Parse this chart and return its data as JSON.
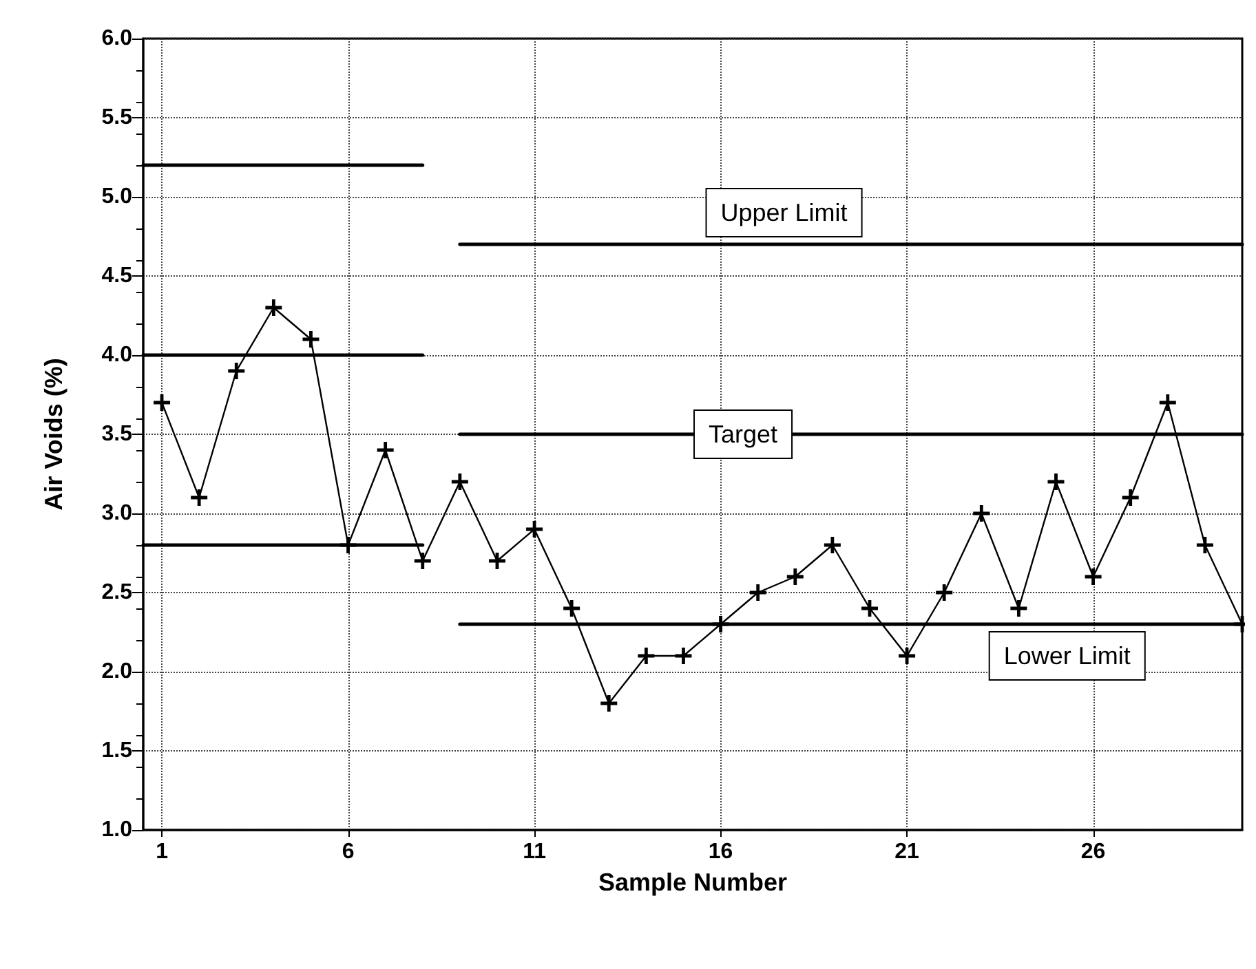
{
  "chart_data": {
    "type": "line",
    "xlabel": "Sample Number",
    "ylabel": "Air Voids (%)",
    "xlim": [
      0.5,
      30
    ],
    "xticks": [
      1,
      6,
      11,
      16,
      21,
      26
    ],
    "ylim": [
      1,
      6
    ],
    "yticks": [
      {
        "value": 1,
        "label": "1.0"
      },
      {
        "value": 1.5,
        "label": "1.5"
      },
      {
        "value": 2,
        "label": "2.0"
      },
      {
        "value": 2.5,
        "label": "2.5"
      },
      {
        "value": 3,
        "label": "3.0"
      },
      {
        "value": 3.5,
        "label": "3.5"
      },
      {
        "value": 4,
        "label": "4.0"
      },
      {
        "value": 4.5,
        "label": "4.5"
      },
      {
        "value": 5,
        "label": "5.0"
      },
      {
        "value": 5.5,
        "label": "5.5"
      },
      {
        "value": 6,
        "label": "6.0"
      }
    ],
    "grid": true,
    "series": [
      {
        "color": "#000000",
        "marker": "cross",
        "x": [
          1,
          2,
          3,
          4,
          5,
          6,
          7,
          8,
          9,
          10,
          11,
          12,
          13,
          14,
          15,
          16,
          17,
          18,
          19,
          20,
          21,
          22,
          23,
          24,
          25,
          26,
          27,
          28,
          29,
          30
        ],
        "values": [
          3.7,
          3.1,
          3.9,
          4.3,
          4.1,
          2.8,
          3.4,
          2.7,
          3.2,
          2.7,
          2.9,
          2.4,
          1.8,
          2.1,
          2.1,
          2.3,
          2.5,
          2.6,
          2.8,
          2.4,
          2.1,
          2.5,
          3.0,
          2.4,
          3.2,
          2.6,
          3.1,
          3.7,
          2.8,
          2.3
        ]
      },
      {
        "color": "#000000",
        "marker": "none",
        "x": [
          0.5,
          8
        ],
        "values": [
          5.2,
          5.2
        ]
      },
      {
        "color": "#000000",
        "marker": "none",
        "x": [
          9,
          30
        ],
        "values": [
          4.7,
          4.7
        ]
      },
      {
        "color": "#000000",
        "marker": "none",
        "x": [
          0.5,
          8
        ],
        "values": [
          4.0,
          4.0
        ]
      },
      {
        "color": "#000000",
        "marker": "none",
        "x": [
          9,
          30
        ],
        "values": [
          3.5,
          3.5
        ]
      },
      {
        "color": "#000000",
        "marker": "none",
        "x": [
          0.5,
          8
        ],
        "values": [
          2.8,
          2.8
        ]
      },
      {
        "color": "#000000",
        "marker": "none",
        "x": [
          9,
          30
        ],
        "values": [
          2.3,
          2.3
        ]
      }
    ],
    "annotations": [
      {
        "text": "Upper Limit",
        "x": 17.7,
        "y": 4.7
      },
      {
        "text": "Target",
        "x": 16.6,
        "y": 3.5
      },
      {
        "text": "Lower Limit",
        "x": 25.3,
        "y": 2.3
      }
    ]
  }
}
